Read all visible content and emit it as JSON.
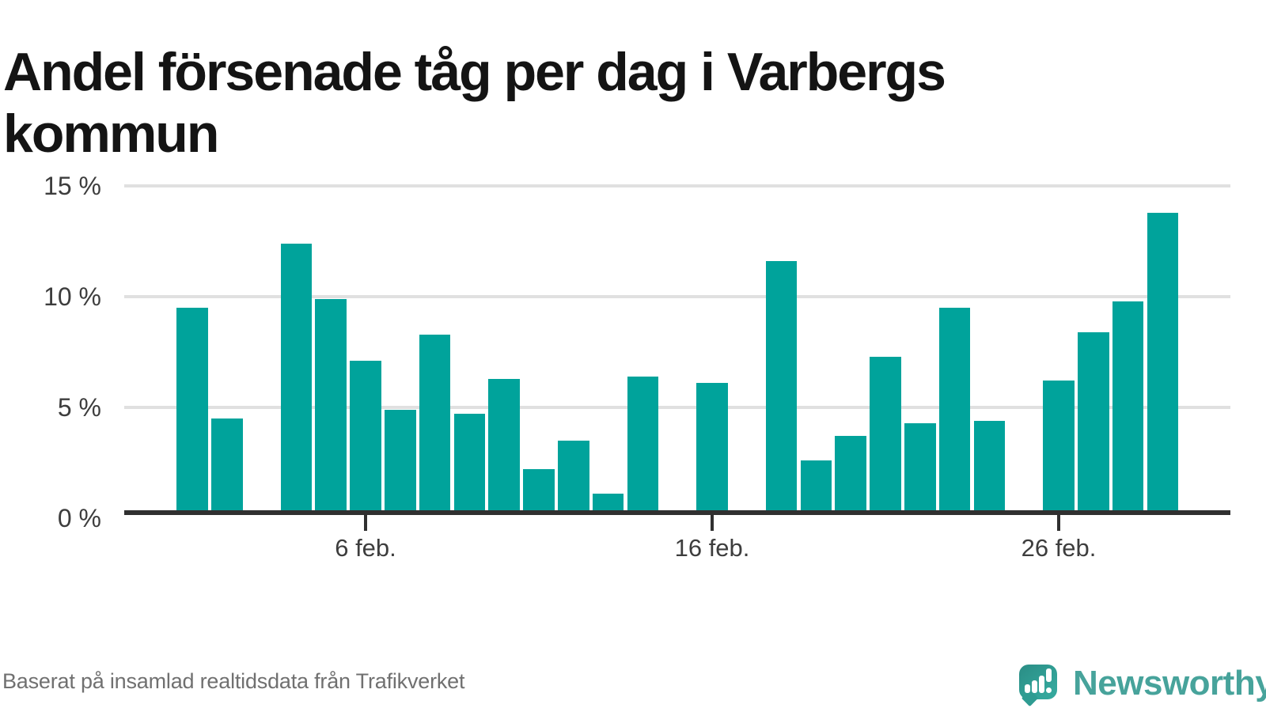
{
  "title": "Andel försenade tåg per dag i Varbergs\nkommun",
  "footer": {
    "text": "Baserat på insamlad realtidsdata från Trafikverket"
  },
  "branding": {
    "name": "Newsworthy",
    "logo_icon": "newsworthy-speech-bubble-barchart-icon"
  },
  "colors": {
    "bar": "#00a39b",
    "gridline": "#e0e0e0",
    "axis": "#303030",
    "tick_label": "#3d3d3d",
    "title": "#141414",
    "footer_text": "#707070",
    "logo_bubble": "#2f9c92",
    "logo_wordmark": "#47a39b"
  },
  "chart_data": {
    "type": "bar",
    "title": "Andel försenade tåg per dag i Varbergs kommun",
    "xlabel": "",
    "ylabel": "",
    "ylim": [
      0,
      15
    ],
    "grid": true,
    "legend": "none",
    "y_ticks": [
      {
        "value": 15,
        "label": "15 %"
      },
      {
        "value": 10,
        "label": "10 %"
      },
      {
        "value": 5,
        "label": "5 %"
      },
      {
        "value": 0,
        "label": "0 %"
      }
    ],
    "x_ticks": [
      {
        "day": 6,
        "label": "6 feb."
      },
      {
        "day": 16,
        "label": "16 feb."
      },
      {
        "day": 26,
        "label": "26 feb."
      }
    ],
    "points": [
      {
        "day": 1,
        "value": 9.5
      },
      {
        "day": 2,
        "value": 4.5
      },
      {
        "day": 4,
        "value": 12.4
      },
      {
        "day": 5,
        "value": 9.9
      },
      {
        "day": 6,
        "value": 7.1
      },
      {
        "day": 7,
        "value": 4.9
      },
      {
        "day": 8,
        "value": 8.3
      },
      {
        "day": 9,
        "value": 4.7
      },
      {
        "day": 10,
        "value": 6.3
      },
      {
        "day": 11,
        "value": 2.2
      },
      {
        "day": 12,
        "value": 3.5
      },
      {
        "day": 13,
        "value": 1.1
      },
      {
        "day": 14,
        "value": 6.4
      },
      {
        "day": 16,
        "value": 6.1
      },
      {
        "day": 18,
        "value": 11.6
      },
      {
        "day": 19,
        "value": 2.6
      },
      {
        "day": 20,
        "value": 3.7
      },
      {
        "day": 21,
        "value": 7.3
      },
      {
        "day": 22,
        "value": 4.3
      },
      {
        "day": 23,
        "value": 9.5
      },
      {
        "day": 24,
        "value": 4.4
      },
      {
        "day": 26,
        "value": 6.2
      },
      {
        "day": 27,
        "value": 8.4
      },
      {
        "day": 28,
        "value": 9.8
      },
      {
        "day": 29,
        "value": 13.8
      }
    ],
    "missing_days": [
      3,
      15,
      17,
      25
    ]
  }
}
